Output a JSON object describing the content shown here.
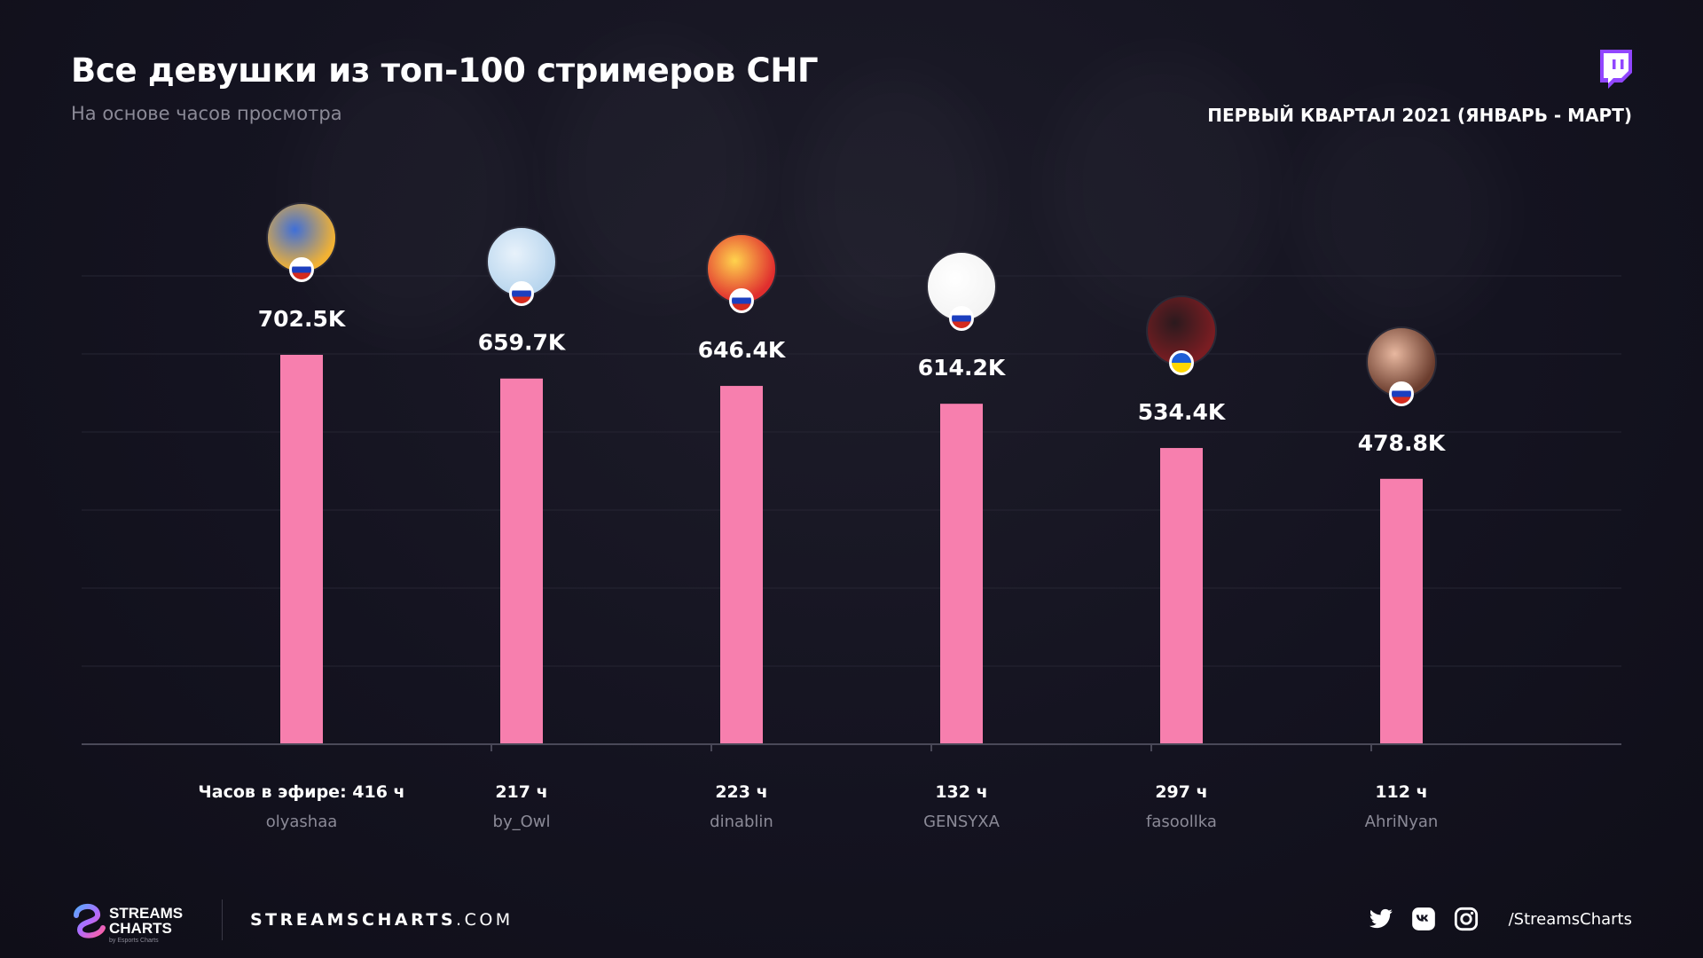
{
  "header": {
    "title": "Все девушки из топ-100 стримеров СНГ",
    "subtitle": "На основе часов просмотра",
    "period": "ПЕРВЫЙ КВАРТАЛ 2021 (ЯНВАРЬ - МАРТ)"
  },
  "chart_data": {
    "type": "bar",
    "categories": [
      "olyashaa",
      "by_Owl",
      "dinablin",
      "GENSYXA",
      "fasoollka",
      "AhriNyan"
    ],
    "values": [
      702.5,
      659.7,
      646.4,
      614.2,
      534.4,
      478.8
    ],
    "value_labels": [
      "702.5K",
      "659.7K",
      "646.4K",
      "614.2K",
      "534.4K",
      "478.8K"
    ],
    "air_hours_labels": [
      "Часов в эфире: 416 ч",
      "217 ч",
      "223 ч",
      "132 ч",
      "297 ч",
      "112 ч"
    ],
    "flags": [
      "ru",
      "ru",
      "ru",
      "ru",
      "ua",
      "ru"
    ],
    "ylim": [
      0,
      702.5
    ],
    "grid": true,
    "bar_color": "#f77fae"
  },
  "footer": {
    "brand_line1": "STREAMS",
    "brand_line2": "CHARTS",
    "brand_tag": "by Esports Charts",
    "site_bold": "STREAMSCHARTS",
    "site_rest": ".COM",
    "handle": "/StreamsCharts",
    "social_icons": [
      "twitter-icon",
      "vk-icon",
      "instagram-icon"
    ]
  },
  "colors": {
    "accent": "#f77fae",
    "twitch": "#9146ff",
    "muted": "#8b8a97"
  }
}
